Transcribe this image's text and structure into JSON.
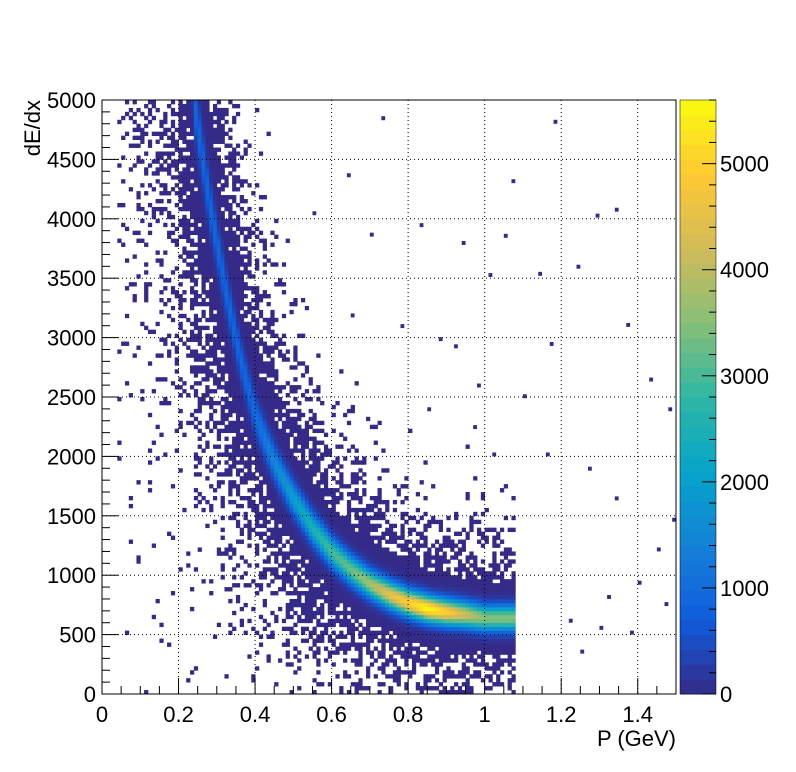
{
  "chart_data": {
    "type": "heatmap",
    "title": "",
    "xlabel": "P (GeV)",
    "ylabel": "dE/dx",
    "xlim": [
      0,
      1.5
    ],
    "ylim": [
      0,
      5000
    ],
    "x_ticks": [
      0,
      0.2,
      0.4,
      0.6,
      0.8,
      1,
      1.2,
      1.4
    ],
    "x_tick_labels": [
      "0",
      "0.2",
      "0.4",
      "0.6",
      "0.8",
      "1",
      "1.2",
      "1.4"
    ],
    "y_ticks": [
      0,
      500,
      1000,
      1500,
      2000,
      2500,
      3000,
      3500,
      4000,
      4500,
      5000
    ],
    "y_tick_labels": [
      "0",
      "500",
      "1000",
      "1500",
      "2000",
      "2500",
      "3000",
      "3500",
      "4000",
      "4500",
      "5000"
    ],
    "grid": true,
    "colorbar": {
      "range": [
        0,
        5600
      ],
      "ticks": [
        0,
        1000,
        2000,
        3000,
        4000,
        5000
      ],
      "tick_labels": [
        "0",
        "1000",
        "2000",
        "3000",
        "4000",
        "5000"
      ],
      "palette": [
        "#352a87",
        "#0f5cdd",
        "#1481d6",
        "#06a4ca",
        "#2eb7a4",
        "#87bf77",
        "#d1bb59",
        "#fec832",
        "#f9fb0e"
      ]
    },
    "band": {
      "description_points_p": [
        0.24,
        0.28,
        0.32,
        0.36,
        0.4,
        0.45,
        0.5,
        0.55,
        0.6,
        0.65,
        0.7,
        0.75,
        0.8,
        0.85,
        0.9,
        0.95,
        1.0
      ],
      "dedx": [
        5000,
        4150,
        3450,
        2850,
        2350,
        1950,
        1650,
        1400,
        1200,
        1050,
        930,
        840,
        770,
        720,
        690,
        670,
        640
      ],
      "peak_counts": [
        900,
        900,
        900,
        900,
        1000,
        1500,
        2000,
        2500,
        3000,
        3300,
        3800,
        4500,
        5000,
        5600,
        5000,
        4200,
        3500
      ]
    },
    "scattered_outliers": [
      [
        0.73,
        4830
      ],
      [
        1.18,
        4800
      ],
      [
        0.32,
        4280
      ],
      [
        0.64,
        4350
      ],
      [
        1.07,
        4300
      ],
      [
        0.55,
        4030
      ],
      [
        1.29,
        4010
      ],
      [
        1.34,
        4060
      ],
      [
        0.83,
        3930
      ],
      [
        0.7,
        3850
      ],
      [
        0.94,
        3780
      ],
      [
        1.05,
        3840
      ],
      [
        1.14,
        3520
      ],
      [
        1.24,
        3580
      ],
      [
        1.01,
        3510
      ],
      [
        0.65,
        3170
      ],
      [
        0.78,
        3080
      ],
      [
        0.88,
        2970
      ],
      [
        1.37,
        3090
      ],
      [
        0.92,
        2910
      ],
      [
        1.17,
        2930
      ],
      [
        1.43,
        2630
      ],
      [
        0.98,
        2580
      ],
      [
        1.1,
        2490
      ],
      [
        1.48,
        2380
      ],
      [
        0.85,
        2380
      ],
      [
        0.97,
        2230
      ],
      [
        1.02,
        2000
      ],
      [
        1.16,
        2000
      ],
      [
        1.27,
        1880
      ],
      [
        1.34,
        1630
      ],
      [
        1.49,
        1450
      ],
      [
        1.45,
        1200
      ],
      [
        1.4,
        920
      ],
      [
        1.32,
        800
      ],
      [
        1.47,
        740
      ],
      [
        1.3,
        540
      ],
      [
        1.22,
        600
      ],
      [
        1.38,
        500
      ],
      [
        1.25,
        340
      ]
    ]
  }
}
